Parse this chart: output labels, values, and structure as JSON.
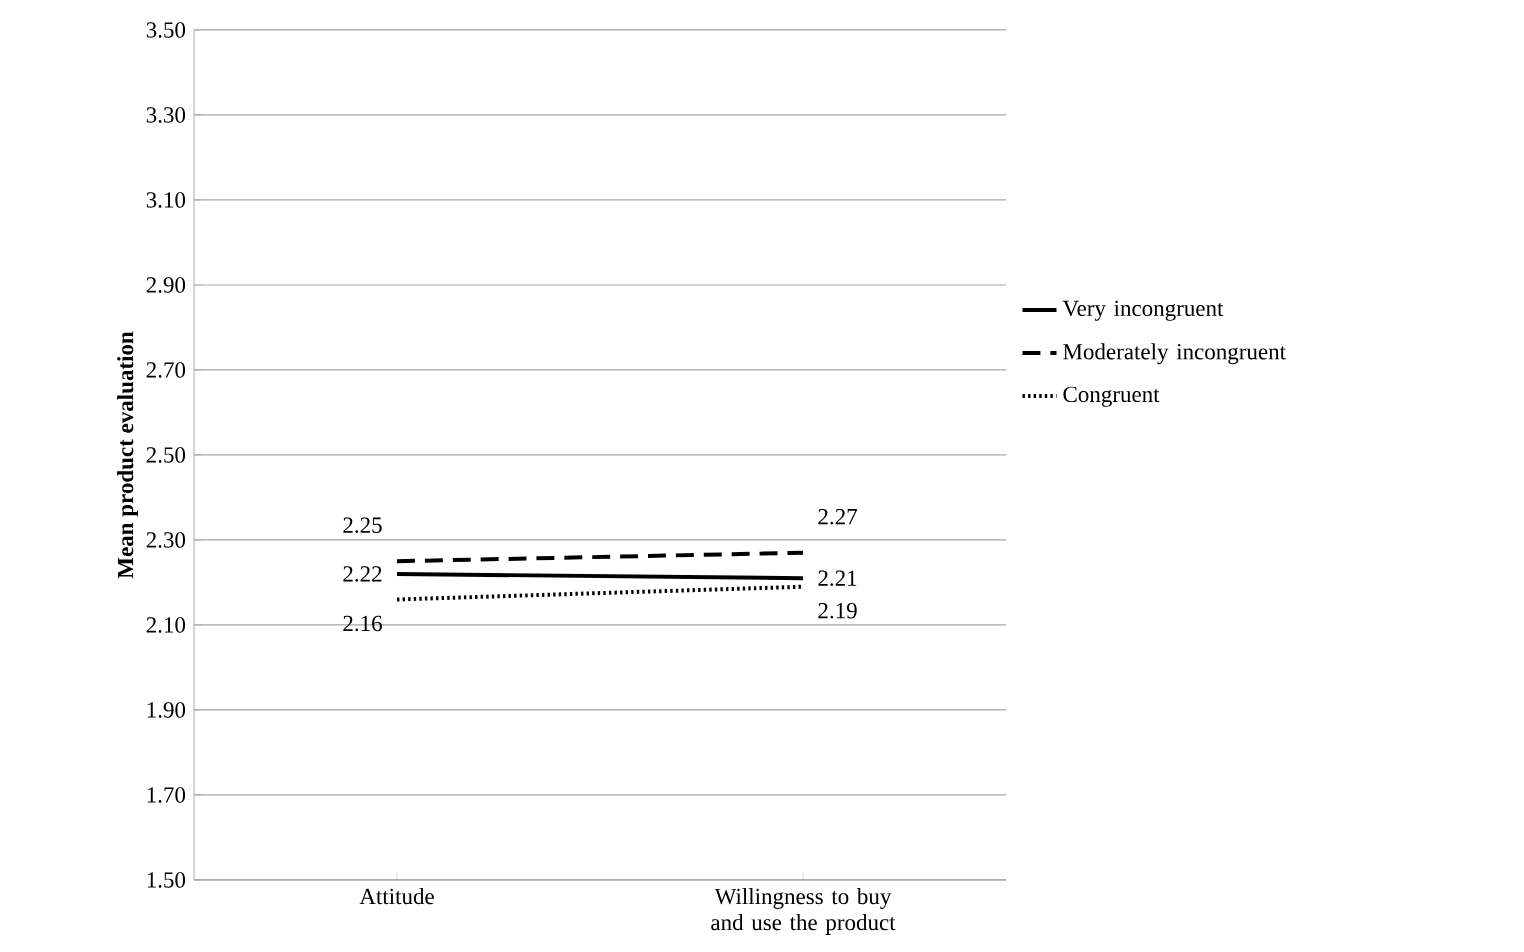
{
  "chart_data": {
    "type": "line",
    "ylabel": "Mean product evaluation",
    "categories": [
      "Attitude",
      "Willingness to buy and use the product"
    ],
    "series": [
      {
        "name": "Very incongruent",
        "color": "#000000",
        "line_style": "solid",
        "values": [
          2.22,
          2.21
        ]
      },
      {
        "name": "Moderately incongruent",
        "color": "#000000",
        "line_style": "dashed",
        "values": [
          2.25,
          2.27
        ]
      },
      {
        "name": "Congruent",
        "color": "#000000",
        "line_style": "dotted",
        "values": [
          2.16,
          2.19
        ]
      }
    ],
    "ylim": [
      1.5,
      3.5
    ],
    "yticks": [
      {
        "value": 1.5,
        "label": "1.50"
      },
      {
        "value": 1.7,
        "label": "1.70"
      },
      {
        "value": 1.9,
        "label": "1.90"
      },
      {
        "value": 2.1,
        "label": "2.10"
      },
      {
        "value": 2.3,
        "label": "2.30"
      },
      {
        "value": 2.5,
        "label": "2.50"
      },
      {
        "value": 2.7,
        "label": "2.70"
      },
      {
        "value": 2.9,
        "label": "2.90"
      },
      {
        "value": 3.1,
        "label": "3.10"
      },
      {
        "value": 3.3,
        "label": "3.30"
      },
      {
        "value": 3.5,
        "label": "3.50"
      }
    ],
    "grid": "y",
    "legend": "right",
    "marker": "none",
    "data_labels": true
  }
}
